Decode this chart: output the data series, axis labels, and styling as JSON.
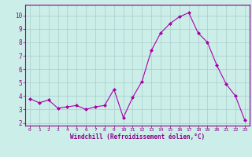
{
  "x": [
    0,
    1,
    2,
    3,
    4,
    5,
    6,
    7,
    8,
    9,
    10,
    11,
    12,
    13,
    14,
    15,
    16,
    17,
    18,
    19,
    20,
    21,
    22,
    23
  ],
  "y": [
    3.8,
    3.5,
    3.7,
    3.1,
    3.2,
    3.3,
    3.0,
    3.2,
    3.3,
    4.5,
    2.4,
    3.9,
    5.1,
    7.4,
    8.7,
    9.4,
    9.9,
    10.2,
    8.7,
    8.0,
    6.3,
    4.9,
    4.0,
    2.2
  ],
  "line_color": "#aa00aa",
  "marker": "D",
  "marker_size": 2.0,
  "bg_color": "#cceee8",
  "grid_color": "#aacccc",
  "xlabel": "Windchill (Refroidissement éolien,°C)",
  "ylabel_ticks": [
    2,
    3,
    4,
    5,
    6,
    7,
    8,
    9,
    10
  ],
  "xlim": [
    -0.5,
    23.5
  ],
  "ylim": [
    1.8,
    10.8
  ],
  "xticks": [
    0,
    1,
    2,
    3,
    4,
    5,
    6,
    7,
    8,
    9,
    10,
    11,
    12,
    13,
    14,
    15,
    16,
    17,
    18,
    19,
    20,
    21,
    22,
    23
  ],
  "label_color": "#880088",
  "tick_color": "#880088",
  "axis_color": "#880088",
  "spine_color": "#880088",
  "xlabel_fontsize": 5.5,
  "xtick_fontsize": 4.5,
  "ytick_fontsize": 5.5,
  "linewidth": 0.8
}
